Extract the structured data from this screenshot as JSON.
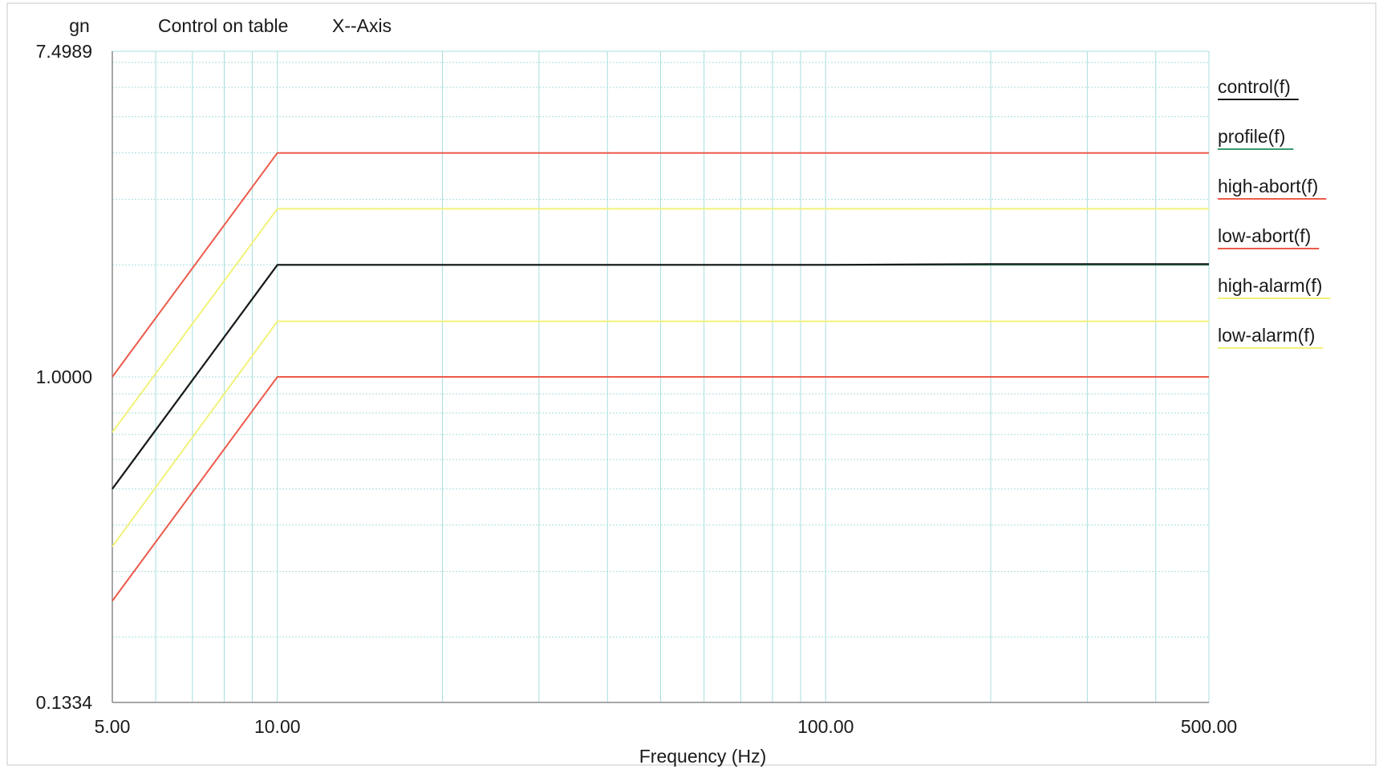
{
  "header": {
    "unit": "gn",
    "title": "Control on table",
    "axis": "X--Axis"
  },
  "colors": {
    "background": "#ffffff",
    "grid": "#a8dede",
    "axis": "#8a8a8a",
    "frame": "#c8c8c8",
    "control": "#1a1a1a",
    "profile": "#3a9a6e",
    "abort": "#ec5a4a",
    "alarm": "#f2f27a"
  },
  "chart_data": {
    "type": "line",
    "title": "Control on table",
    "subtitle": "X--Axis",
    "xlabel": "Frequency (Hz)",
    "ylabel": "gn",
    "xscale": "log",
    "yscale": "log",
    "xlim": [
      5.0,
      500.0
    ],
    "ylim": [
      0.1334,
      7.4989
    ],
    "x_tick_labels": [
      {
        "value": 5,
        "label": "5.00"
      },
      {
        "value": 10,
        "label": "10.00"
      },
      {
        "value": 100,
        "label": "100.00"
      },
      {
        "value": 500,
        "label": "500.00"
      }
    ],
    "y_tick_labels": [
      {
        "value": 7.4989,
        "label": "7.4989"
      },
      {
        "value": 1.0,
        "label": "1.0000"
      },
      {
        "value": 0.1334,
        "label": "0.1334"
      }
    ],
    "grid": true,
    "legend_position": "right",
    "series": [
      {
        "name": "control(f)",
        "color": "#1a1a1a",
        "x": [
          5,
          10,
          20,
          50,
          100,
          200,
          500
        ],
        "y": [
          0.5,
          2.0,
          2.0,
          2.0,
          2.0,
          2.01,
          2.01
        ]
      },
      {
        "name": "profile(f)",
        "color": "#3a9a6e",
        "x": [
          5,
          10,
          500
        ],
        "y": [
          0.5,
          2.0,
          2.0
        ]
      },
      {
        "name": "high-abort(f)",
        "color": "#ec5a4a",
        "x": [
          5,
          10,
          500
        ],
        "y": [
          1.0,
          4.0,
          4.0
        ]
      },
      {
        "name": "low-abort(f)",
        "color": "#ec5a4a",
        "x": [
          5,
          10,
          500
        ],
        "y": [
          0.25,
          1.0,
          1.0
        ]
      },
      {
        "name": "high-alarm(f)",
        "color": "#f2f27a",
        "x": [
          5,
          10,
          500
        ],
        "y": [
          0.71,
          2.83,
          2.83
        ]
      },
      {
        "name": "low-alarm(f)",
        "color": "#f2f27a",
        "x": [
          5,
          10,
          500
        ],
        "y": [
          0.35,
          1.41,
          1.41
        ]
      }
    ]
  }
}
